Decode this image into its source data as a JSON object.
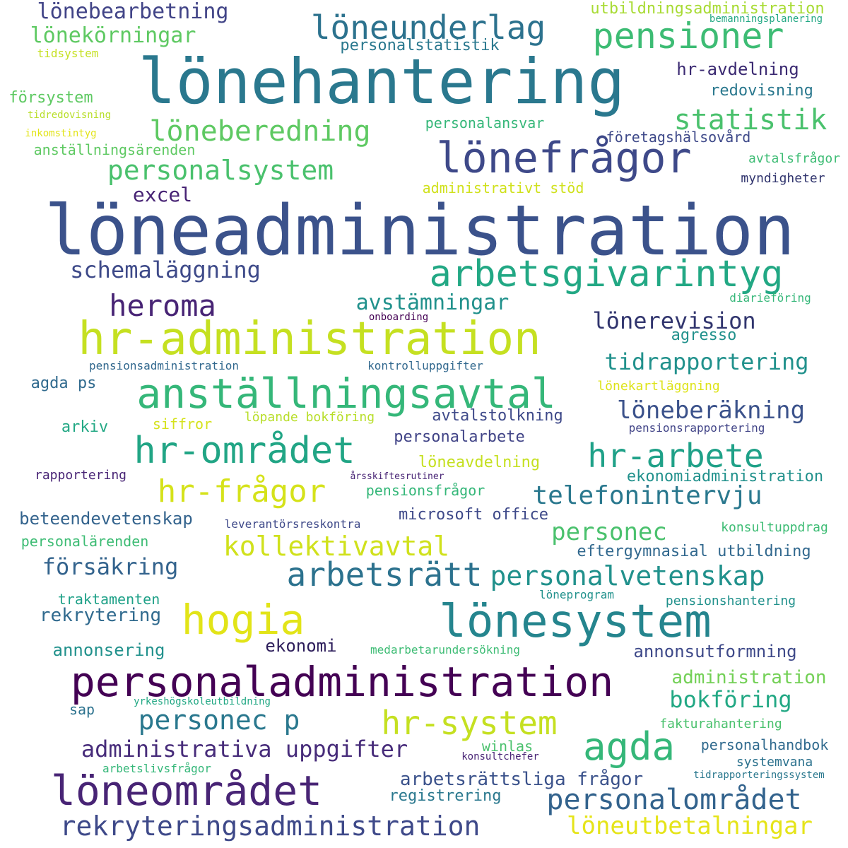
{
  "words": [
    {
      "text": "löneadministration",
      "color": "#3b528b"
    },
    {
      "text": "lönehantering",
      "color": "#2a788e"
    },
    {
      "text": "hr-administration",
      "color": "#c5e021"
    },
    {
      "text": "personaladministration",
      "color": "#440154"
    },
    {
      "text": "lönesystem",
      "color": "#25858e"
    },
    {
      "text": "anställningsavtal",
      "color": "#35b779"
    },
    {
      "text": "löneområdet",
      "color": "#482475"
    },
    {
      "text": "lönefrågor",
      "color": "#3e4989"
    },
    {
      "text": "arbetsgivarintyg",
      "color": "#22a884"
    },
    {
      "text": "hr-området",
      "color": "#21a585"
    },
    {
      "text": "hogia",
      "color": "#e2e418"
    },
    {
      "text": "agda",
      "color": "#35b779"
    },
    {
      "text": "löneunderlag",
      "color": "#2c728e"
    },
    {
      "text": "pensioner",
      "color": "#3dbc74"
    },
    {
      "text": "arbetsrätt",
      "color": "#2c728e"
    },
    {
      "text": "personalvetenskap",
      "color": "#21918c"
    },
    {
      "text": "personalområdet",
      "color": "#33638d"
    },
    {
      "text": "hr-system",
      "color": "#c5e021"
    },
    {
      "text": "hr-arbete",
      "color": "#1fa188"
    },
    {
      "text": "hr-frågor",
      "color": "#d5e21a"
    },
    {
      "text": "rekryteringsadministration",
      "color": "#3e4989"
    },
    {
      "text": "löneberedning",
      "color": "#5ec962"
    },
    {
      "text": "heroma",
      "color": "#482475"
    },
    {
      "text": "statistik",
      "color": "#4ac16d"
    },
    {
      "text": "personalsystem",
      "color": "#4ac16d"
    },
    {
      "text": "kollektivavtal",
      "color": "#d0e11c"
    },
    {
      "text": "personec p",
      "color": "#2a788e"
    },
    {
      "text": "löneutbetalningar",
      "color": "#e5e419"
    },
    {
      "text": "administrativa uppgifter",
      "color": "#472c7a"
    },
    {
      "text": "telefonintervju",
      "color": "#2a788e"
    },
    {
      "text": "löneberäkning",
      "color": "#3b528b"
    },
    {
      "text": "tidrapportering",
      "color": "#21918c"
    },
    {
      "text": "personec",
      "color": "#4ac16d"
    },
    {
      "text": "försäkring",
      "color": "#33638d"
    },
    {
      "text": "schemaläggning",
      "color": "#3e4a89"
    },
    {
      "text": "avstämningar",
      "color": "#21918c"
    },
    {
      "text": "bokföring",
      "color": "#22a884"
    },
    {
      "text": "lönerevision",
      "color": "#31356e"
    },
    {
      "text": "lönebearbetning",
      "color": "#414487"
    },
    {
      "text": "lönekörningar",
      "color": "#5ec962"
    },
    {
      "text": "arbetsrättsliga frågor",
      "color": "#3b528b"
    },
    {
      "text": "excel",
      "color": "#482475"
    },
    {
      "text": "rekrytering",
      "color": "#306a8e"
    },
    {
      "text": "annonsering",
      "color": "#21918c"
    },
    {
      "text": "ekonomi",
      "color": "#2d1e5b"
    },
    {
      "text": "administration",
      "color": "#73d056"
    },
    {
      "text": "annonsutformning",
      "color": "#3e4989"
    },
    {
      "text": "hr-avdelning",
      "color": "#3b2a72"
    },
    {
      "text": "personalstatistik",
      "color": "#2a788e"
    },
    {
      "text": "utbildningsadministration",
      "color": "#a8db34"
    },
    {
      "text": "redovisning",
      "color": "#2a788e"
    },
    {
      "text": "försystem",
      "color": "#5ec962"
    },
    {
      "text": "personalansvar",
      "color": "#35b779"
    },
    {
      "text": "företagshälsovård",
      "color": "#3e4989"
    },
    {
      "text": "anställningsärenden",
      "color": "#5ec962"
    },
    {
      "text": "administrativt stöd",
      "color": "#d0e11c"
    },
    {
      "text": "avtalsfrågor",
      "color": "#3dbc74"
    },
    {
      "text": "myndigheter",
      "color": "#31356e"
    },
    {
      "text": "agda ps",
      "color": "#306a8e"
    },
    {
      "text": "arkiv",
      "color": "#22a884"
    },
    {
      "text": "siffror",
      "color": "#d5e21a"
    },
    {
      "text": "löpande bokföring",
      "color": "#b8de29"
    },
    {
      "text": "avtalstolkning",
      "color": "#3e4989"
    },
    {
      "text": "personalarbete",
      "color": "#414487"
    },
    {
      "text": "löneavdelning",
      "color": "#c5e021"
    },
    {
      "text": "ekonomiadministration",
      "color": "#21918c"
    },
    {
      "text": "pensionsfrågor",
      "color": "#35b779"
    },
    {
      "text": "microsoft office",
      "color": "#3e4989"
    },
    {
      "text": "beteendevetenskap",
      "color": "#33638d"
    },
    {
      "text": "personalärenden",
      "color": "#3dbc74"
    },
    {
      "text": "eftergymnasial utbildning",
      "color": "#31688e"
    },
    {
      "text": "konsultuppdrag",
      "color": "#3dbc74"
    },
    {
      "text": "traktamenten",
      "color": "#1fa188"
    },
    {
      "text": "pensionshantering",
      "color": "#21918c"
    },
    {
      "text": "systemvana",
      "color": "#2c728e"
    },
    {
      "text": "personalhandbok",
      "color": "#306a8e"
    },
    {
      "text": "registrering",
      "color": "#2a788e"
    },
    {
      "text": "winlas",
      "color": "#4ac16d"
    },
    {
      "text": "sap",
      "color": "#2c728e"
    },
    {
      "text": "fakturahantering",
      "color": "#4ac16d"
    },
    {
      "text": "agresso",
      "color": "#21918c"
    },
    {
      "text": "diarieföring",
      "color": "#35b779"
    },
    {
      "text": "lönekartläggning",
      "color": "#dde318"
    },
    {
      "text": "kontrolluppgifter",
      "color": "#31688e"
    },
    {
      "text": "pensionsadministration",
      "color": "#31688e"
    },
    {
      "text": "rapportering",
      "color": "#482475"
    },
    {
      "text": "leverantörsreskontra",
      "color": "#3e4989"
    },
    {
      "text": "pensionsrapportering",
      "color": "#414487"
    },
    {
      "text": "löneprogram",
      "color": "#21918c"
    },
    {
      "text": "medarbetarundersökning",
      "color": "#3dbc74"
    },
    {
      "text": "yrkeshögskoleutbildning",
      "color": "#22a884"
    },
    {
      "text": "arbetslivsfrågor",
      "color": "#35b779"
    },
    {
      "text": "konsultchefer",
      "color": "#482475"
    },
    {
      "text": "tidrapporteringssystem",
      "color": "#2a788e"
    },
    {
      "text": "bemanningsplanering",
      "color": "#22a884"
    },
    {
      "text": "tidsystem",
      "color": "#c5e021"
    },
    {
      "text": "tidredovisning",
      "color": "#b8de29"
    },
    {
      "text": "inkomstintyg",
      "color": "#e2e418"
    },
    {
      "text": "onboarding",
      "color": "#440154"
    },
    {
      "text": "årsskiftesrutiner",
      "color": "#482475"
    }
  ]
}
